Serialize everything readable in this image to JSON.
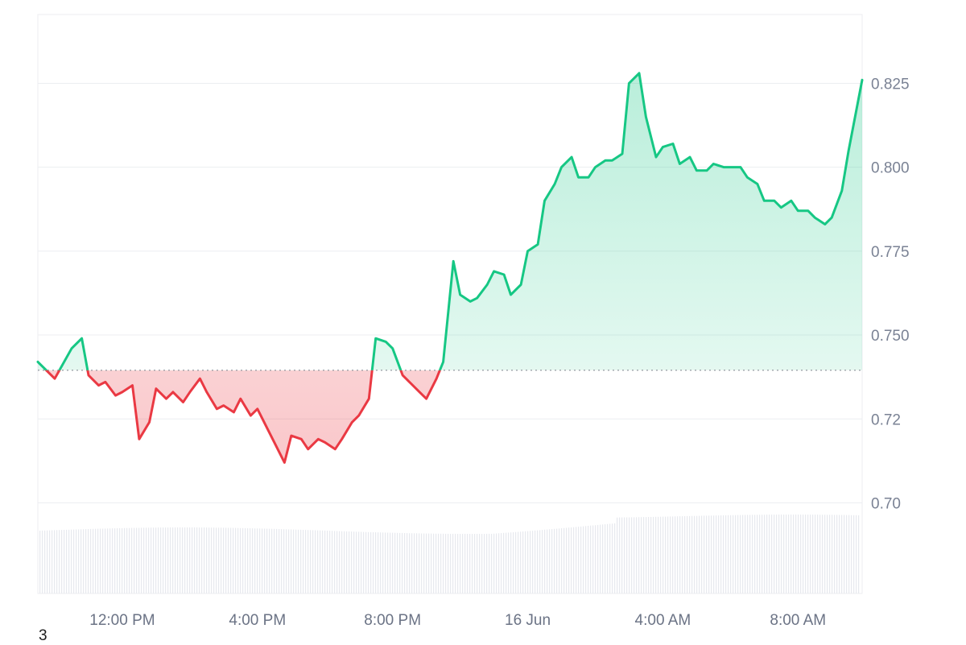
{
  "chart_data": {
    "type": "area",
    "baseline": 0.7395,
    "ylim": [
      0.673,
      0.8455
    ],
    "yticks": [
      "0.825",
      "0.800",
      "0.775",
      "0.750",
      "0.72",
      "0.70"
    ],
    "ytick_values": [
      0.825,
      0.8,
      0.775,
      0.75,
      0.725,
      0.7
    ],
    "xticks": [
      {
        "label": "12:00 PM",
        "x": 2.0
      },
      {
        "label": "4:00 PM",
        "x": 6.0
      },
      {
        "label": "8:00 PM",
        "x": 10.0
      },
      {
        "label": "16 Jun",
        "x": 14.0
      },
      {
        "label": "4:00 AM",
        "x": 18.0
      },
      {
        "label": "8:00 AM",
        "x": 22.0
      }
    ],
    "xlim": [
      -0.5,
      23.9
    ],
    "x_unit": "hours since 10:30 AM",
    "series": [
      {
        "name": "",
        "x": [
          -0.5,
          0.0,
          0.5,
          0.8,
          1.0,
          1.3,
          1.5,
          1.8,
          2.0,
          2.3,
          2.5,
          2.8,
          3.0,
          3.3,
          3.5,
          3.8,
          4.0,
          4.3,
          4.5,
          4.8,
          5.0,
          5.3,
          5.5,
          5.8,
          6.0,
          6.3,
          6.5,
          6.8,
          7.0,
          7.3,
          7.5,
          7.8,
          8.0,
          8.3,
          8.5,
          8.8,
          9.0,
          9.3,
          9.5,
          9.8,
          10.0,
          10.3,
          10.5,
          10.8,
          11.0,
          11.3,
          11.5,
          11.8,
          12.0,
          12.3,
          12.5,
          12.8,
          13.0,
          13.3,
          13.5,
          13.8,
          14.0,
          14.3,
          14.5,
          14.8,
          15.0,
          15.3,
          15.5,
          15.8,
          16.0,
          16.3,
          16.5,
          16.8,
          17.0,
          17.3,
          17.5,
          17.8,
          18.0,
          18.3,
          18.5,
          18.8,
          19.0,
          19.3,
          19.5,
          19.8,
          20.0,
          20.3,
          20.5,
          20.8,
          21.0,
          21.3,
          21.5,
          21.8,
          22.0,
          22.3,
          22.5,
          22.8,
          23.0,
          23.3,
          23.5,
          23.9
        ],
        "y": [
          0.742,
          0.737,
          0.746,
          0.749,
          0.738,
          0.735,
          0.736,
          0.732,
          0.733,
          0.735,
          0.719,
          0.724,
          0.734,
          0.731,
          0.733,
          0.73,
          0.733,
          0.737,
          0.733,
          0.728,
          0.729,
          0.727,
          0.731,
          0.726,
          0.728,
          0.722,
          0.718,
          0.712,
          0.72,
          0.719,
          0.716,
          0.719,
          0.718,
          0.716,
          0.719,
          0.724,
          0.726,
          0.731,
          0.749,
          0.748,
          0.746,
          0.738,
          0.736,
          0.733,
          0.731,
          0.737,
          0.742,
          0.772,
          0.762,
          0.76,
          0.761,
          0.765,
          0.769,
          0.768,
          0.762,
          0.765,
          0.775,
          0.777,
          0.79,
          0.795,
          0.8,
          0.803,
          0.797,
          0.797,
          0.8,
          0.802,
          0.802,
          0.804,
          0.825,
          0.828,
          0.815,
          0.803,
          0.806,
          0.807,
          0.801,
          0.803,
          0.799,
          0.799,
          0.801,
          0.8,
          0.8,
          0.8,
          0.797,
          0.795,
          0.79,
          0.79,
          0.788,
          0.79,
          0.787,
          0.787,
          0.785,
          0.783,
          0.785,
          0.793,
          0.805,
          0.826
        ]
      }
    ],
    "colors": {
      "up": "#16c784",
      "down": "#ea3943",
      "grid": "#eceef1",
      "baseline": "#8a8f99",
      "volume": "#e7e9ee",
      "tick_text": "#7a8294"
    },
    "grid": true,
    "corner_label": "3"
  }
}
